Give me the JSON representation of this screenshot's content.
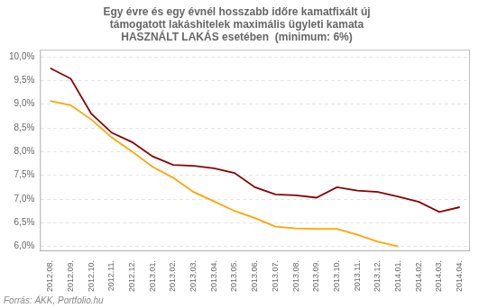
{
  "chart_data": {
    "type": "line",
    "title": [
      "Egy évre és egy évnél hosszabb időre kamatfixált új",
      "támogatott lakáshitelek maximális ügyleti kamata",
      "HASZNÁLT LAKÁS esetében  (minimum: 6%)"
    ],
    "annotations": [
      "Forrás: ÁKK, Portfolio.hu"
    ],
    "categories": [
      "2012.08.",
      "2012.09.",
      "2012.10.",
      "2012.11.",
      "2012.12.",
      "2013.01.",
      "2013.02.",
      "2013.03.",
      "2013.04.",
      "2013.05.",
      "2013.06.",
      "2013.07.",
      "2013.08.",
      "2013.09.",
      "2013.10.",
      "2013.11.",
      "2013.12.",
      "2014.01.",
      "2014.02.",
      "2014.03.",
      "2014.04."
    ],
    "series": [
      {
        "color": "#8B0000",
        "values": [
          9.76,
          9.54,
          8.8,
          8.4,
          8.2,
          7.9,
          7.72,
          7.7,
          7.65,
          7.55,
          7.25,
          7.1,
          7.08,
          7.03,
          7.25,
          7.18,
          7.15,
          7.05,
          6.94,
          6.73,
          6.83
        ]
      },
      {
        "color": "#FFA500",
        "values": [
          9.07,
          8.98,
          8.68,
          8.3,
          8.0,
          7.68,
          7.45,
          7.15,
          6.95,
          6.75,
          6.6,
          6.42,
          6.38,
          6.37,
          6.37,
          6.25,
          6.1,
          6.0,
          null,
          null,
          null
        ]
      }
    ],
    "ylim": [
      5.9,
      10.15
    ],
    "yticks": [
      {
        "value": 6.0,
        "label": "6,0%"
      },
      {
        "value": 6.5,
        "label": "6,5%"
      },
      {
        "value": 7.0,
        "label": "7,0%"
      },
      {
        "value": 7.5,
        "label": "7,5%"
      },
      {
        "value": 8.0,
        "label": "8,0%"
      },
      {
        "value": 8.5,
        "label": "8,5%"
      },
      {
        "value": 9.0,
        "label": "9,0%"
      },
      {
        "value": 9.5,
        "label": "9,5%"
      },
      {
        "value": 10.0,
        "label": "10,0%"
      }
    ],
    "grid": true
  }
}
